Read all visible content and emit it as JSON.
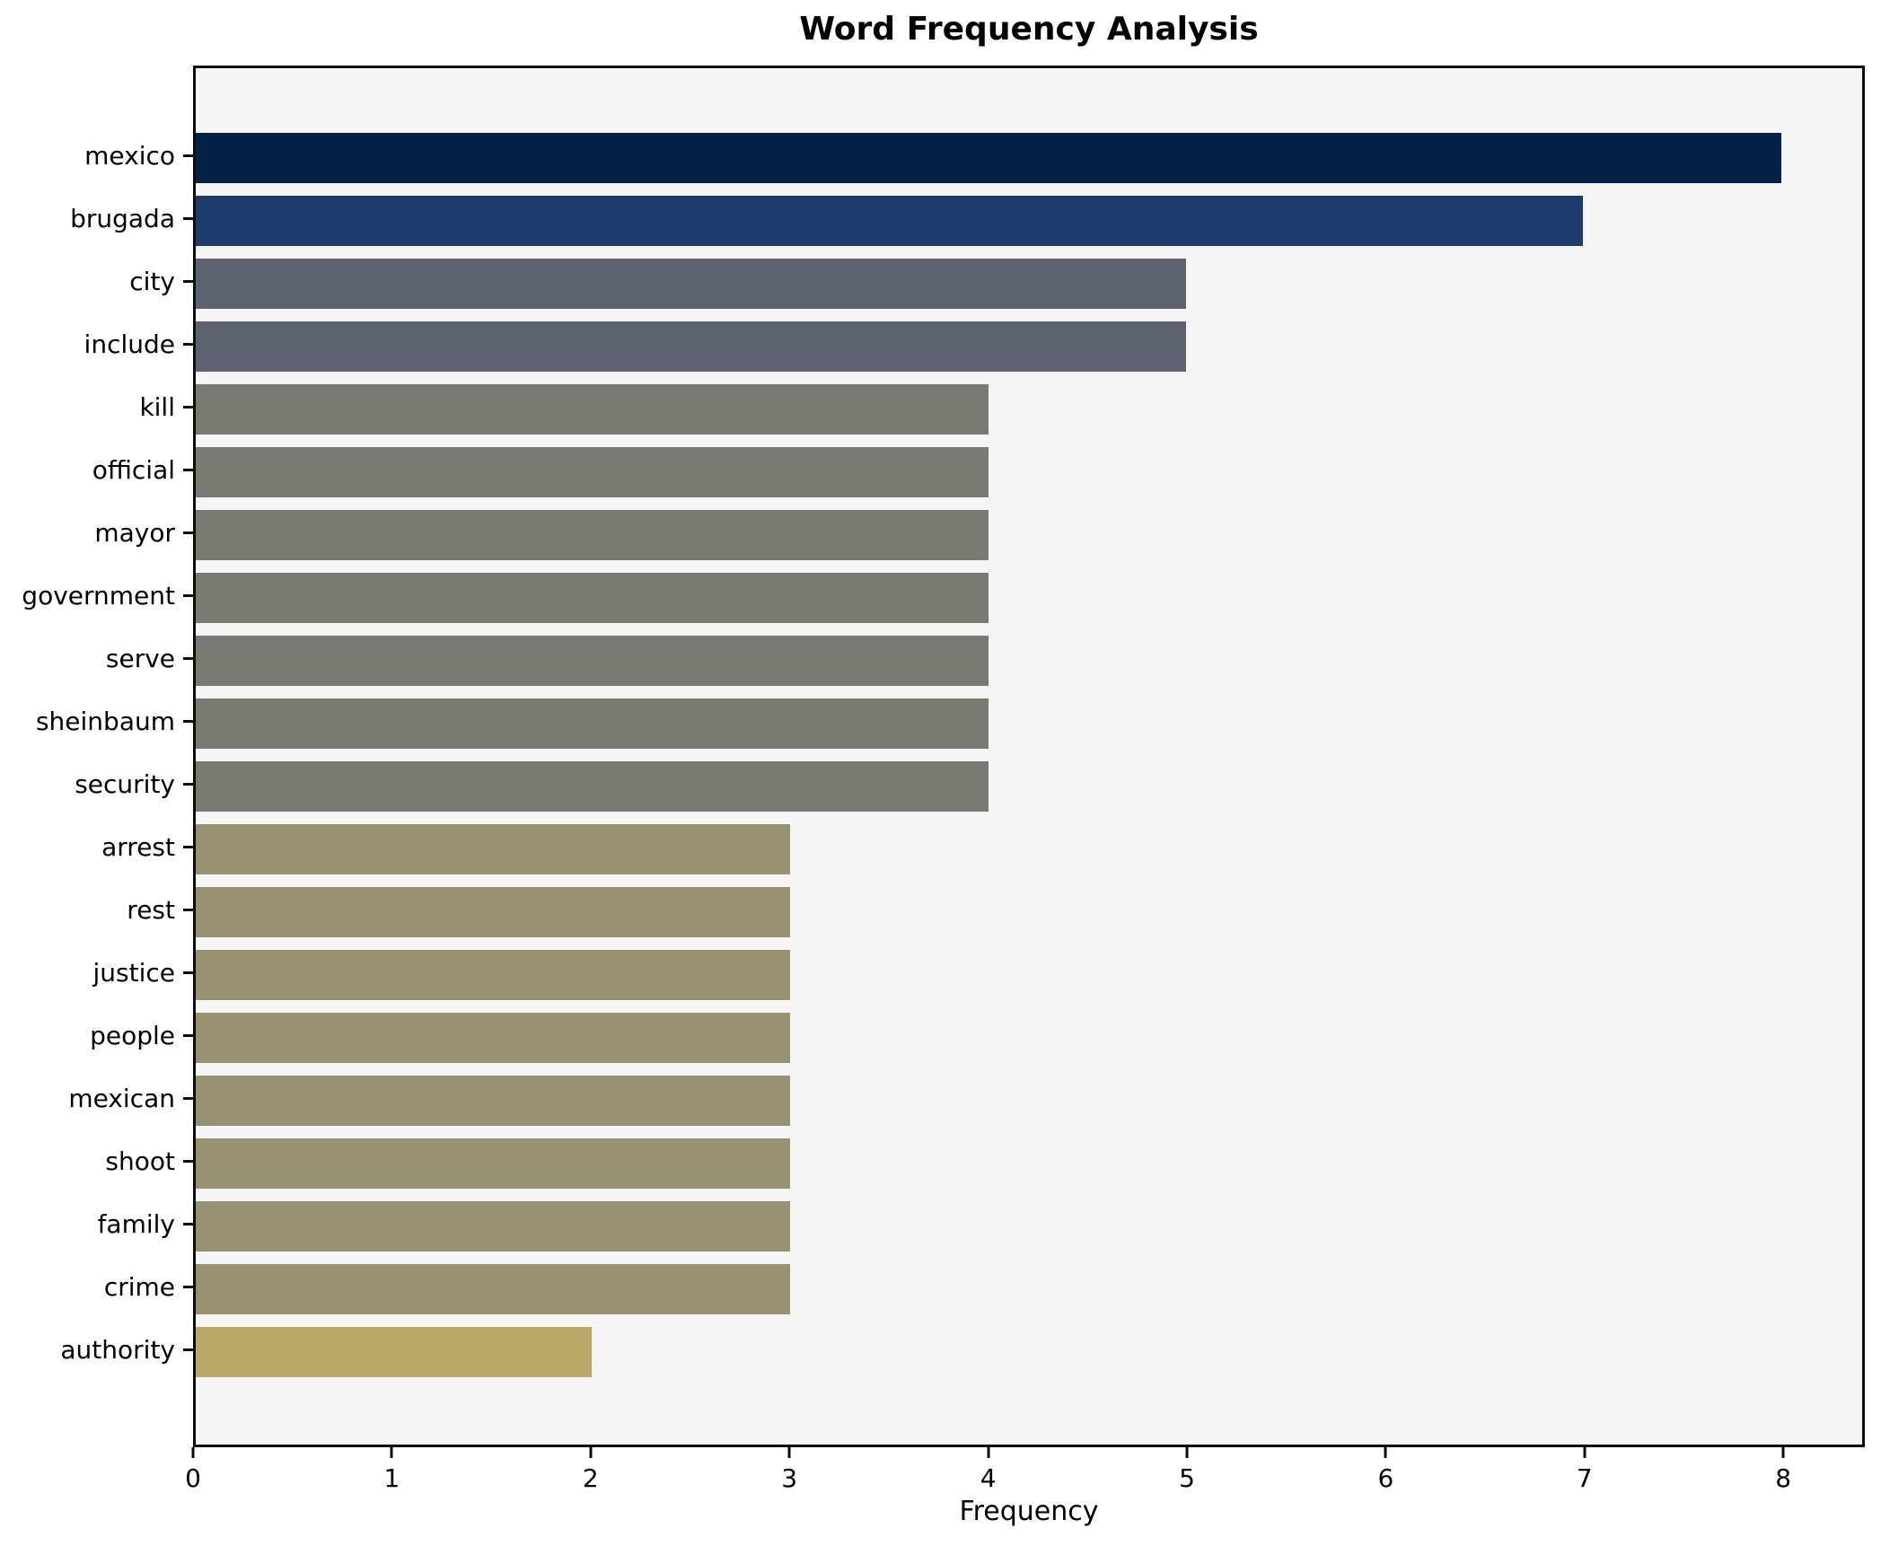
{
  "chart_data": {
    "type": "bar",
    "orientation": "horizontal",
    "title": "Word Frequency Analysis",
    "xlabel": "Frequency",
    "ylabel": "",
    "categories": [
      "mexico",
      "brugada",
      "city",
      "include",
      "kill",
      "official",
      "mayor",
      "government",
      "serve",
      "sheinbaum",
      "security",
      "arrest",
      "rest",
      "justice",
      "people",
      "mexican",
      "shoot",
      "family",
      "crime",
      "authority"
    ],
    "values": [
      8,
      7,
      5,
      5,
      4,
      4,
      4,
      4,
      4,
      4,
      4,
      3,
      3,
      3,
      3,
      3,
      3,
      3,
      3,
      2
    ],
    "bar_colors": [
      "#062149",
      "#1f3a6c",
      "#5f6270",
      "#5f6270",
      "#7a7a74",
      "#7a7a74",
      "#7a7a74",
      "#7a7a74",
      "#7a7a74",
      "#7a7a74",
      "#7a7a74",
      "#999272",
      "#999272",
      "#999272",
      "#999272",
      "#999272",
      "#999272",
      "#999272",
      "#999272",
      "#bca868"
    ],
    "xticks": [
      0,
      1,
      2,
      3,
      4,
      5,
      6,
      7,
      8
    ],
    "xlim": [
      0,
      8.41
    ],
    "grid": false,
    "legend_position": "none",
    "plot_background": "#f5f5f6",
    "figure_background": "#ffffff",
    "spine_color": "#0c0c0c"
  }
}
